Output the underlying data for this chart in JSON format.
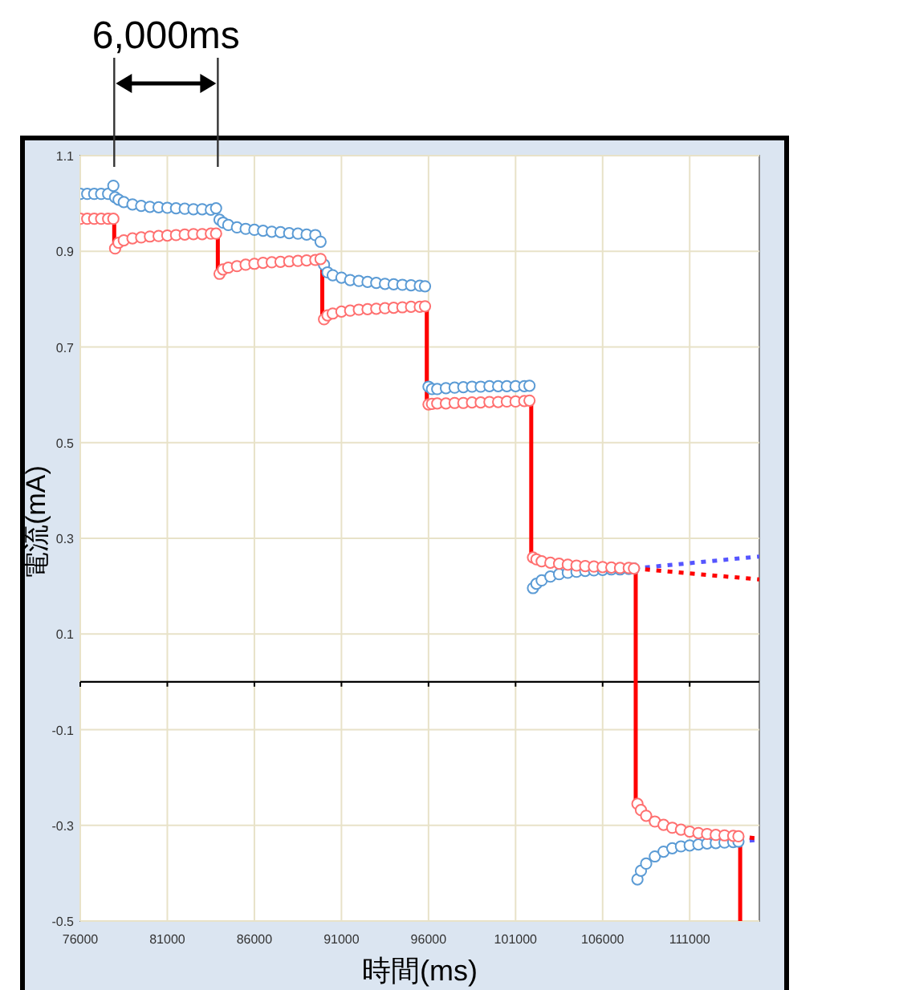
{
  "chart_data": {
    "type": "scatter",
    "xlabel": "時間(ms)",
    "ylabel": "電流(mA)",
    "annotations": [
      "6,000ms"
    ],
    "xlim": [
      76000,
      115000
    ],
    "xticks": [
      76000,
      81000,
      86000,
      91000,
      96000,
      101000,
      106000,
      111000
    ],
    "ylim": [
      -0.5,
      1.1
    ],
    "yticks": [
      1.1,
      0.9,
      0.7,
      0.5,
      0.3,
      0.1,
      -0.1,
      -0.3,
      -0.5
    ],
    "grid": true,
    "series": [
      {
        "color": "#5b9bd5",
        "marker": "circle",
        "x": [
          76000,
          76400,
          76800,
          77200,
          77600,
          77900,
          78000,
          78200,
          78500,
          79000,
          79500,
          80000,
          80500,
          81000,
          81500,
          82000,
          82500,
          83000,
          83500,
          83800,
          84000,
          84200,
          84500,
          85000,
          85500,
          86000,
          86500,
          87000,
          87500,
          88000,
          88500,
          89000,
          89500,
          89800,
          90000,
          90200,
          90500,
          91000,
          91500,
          92000,
          92500,
          93000,
          93500,
          94000,
          94500,
          95000,
          95500,
          95800,
          96000,
          96200,
          96500,
          97000,
          97500,
          98000,
          98500,
          99000,
          99500,
          100000,
          100500,
          101000,
          101500,
          101800,
          102000,
          102200,
          102500,
          103000,
          103500,
          104000,
          104500,
          105000,
          105500,
          106000,
          106500,
          107000,
          107500,
          107800,
          108000,
          108200,
          108500,
          109000,
          109500,
          110000,
          110500,
          111000,
          111500,
          112000,
          112500,
          113000,
          113500,
          113800
        ],
        "values": [
          1.02,
          1.02,
          1.02,
          1.02,
          1.02,
          1.037,
          1.013,
          1.008,
          1.003,
          0.998,
          0.995,
          0.993,
          0.992,
          0.991,
          0.99,
          0.989,
          0.988,
          0.988,
          0.987,
          0.99,
          0.966,
          0.96,
          0.955,
          0.95,
          0.947,
          0.945,
          0.943,
          0.941,
          0.94,
          0.938,
          0.937,
          0.935,
          0.934,
          0.92,
          0.872,
          0.856,
          0.85,
          0.845,
          0.84,
          0.838,
          0.836,
          0.834,
          0.832,
          0.831,
          0.83,
          0.829,
          0.828,
          0.827,
          0.617,
          0.612,
          0.612,
          0.614,
          0.615,
          0.616,
          0.617,
          0.617,
          0.618,
          0.618,
          0.618,
          0.618,
          0.618,
          0.619,
          0.196,
          0.205,
          0.212,
          0.22,
          0.225,
          0.228,
          0.23,
          0.232,
          0.233,
          0.234,
          0.235,
          0.235,
          0.236,
          0.237,
          -0.413,
          -0.395,
          -0.38,
          -0.365,
          -0.355,
          -0.348,
          -0.344,
          -0.342,
          -0.34,
          -0.338,
          -0.337,
          -0.336,
          -0.335,
          -0.334
        ]
      },
      {
        "color": "#ff7070",
        "marker": "circle",
        "x": [
          76000,
          76400,
          76800,
          77200,
          77600,
          77900,
          78000,
          78200,
          78500,
          79000,
          79500,
          80000,
          80500,
          81000,
          81500,
          82000,
          82500,
          83000,
          83500,
          83800,
          84000,
          84200,
          84500,
          85000,
          85500,
          86000,
          86500,
          87000,
          87500,
          88000,
          88500,
          89000,
          89500,
          89800,
          90000,
          90200,
          90500,
          91000,
          91500,
          92000,
          92500,
          93000,
          93500,
          94000,
          94500,
          95000,
          95500,
          95800,
          96000,
          96200,
          96500,
          97000,
          97500,
          98000,
          98500,
          99000,
          99500,
          100000,
          100500,
          101000,
          101500,
          101800,
          102000,
          102200,
          102500,
          103000,
          103500,
          104000,
          104500,
          105000,
          105500,
          106000,
          106500,
          107000,
          107500,
          107800,
          108000,
          108200,
          108500,
          109000,
          109500,
          110000,
          110500,
          111000,
          111500,
          112000,
          112500,
          113000,
          113500,
          113800
        ],
        "values": [
          0.968,
          0.968,
          0.968,
          0.968,
          0.968,
          0.968,
          0.906,
          0.918,
          0.923,
          0.927,
          0.929,
          0.931,
          0.932,
          0.933,
          0.934,
          0.935,
          0.936,
          0.936,
          0.937,
          0.937,
          0.853,
          0.862,
          0.866,
          0.869,
          0.872,
          0.874,
          0.876,
          0.877,
          0.878,
          0.879,
          0.88,
          0.881,
          0.882,
          0.884,
          0.758,
          0.766,
          0.77,
          0.774,
          0.776,
          0.778,
          0.779,
          0.78,
          0.781,
          0.782,
          0.783,
          0.784,
          0.784,
          0.785,
          0.58,
          0.581,
          0.582,
          0.582,
          0.583,
          0.583,
          0.584,
          0.584,
          0.585,
          0.585,
          0.586,
          0.586,
          0.587,
          0.588,
          0.26,
          0.256,
          0.252,
          0.249,
          0.247,
          0.245,
          0.243,
          0.242,
          0.241,
          0.24,
          0.239,
          0.238,
          0.238,
          0.237,
          -0.255,
          -0.268,
          -0.28,
          -0.292,
          -0.299,
          -0.305,
          -0.309,
          -0.313,
          -0.316,
          -0.318,
          -0.32,
          -0.321,
          -0.322,
          -0.323
        ]
      },
      {
        "type": "line",
        "color": "#ff0000",
        "marker": "none",
        "line_style": "solid",
        "x": [
          77950,
          77950
        ],
        "values": [
          0.968,
          0.906
        ]
      },
      {
        "type": "line",
        "color": "#ff0000",
        "marker": "none",
        "line_style": "solid",
        "x": [
          83900,
          83900
        ],
        "values": [
          0.937,
          0.853
        ]
      },
      {
        "type": "line",
        "color": "#ff0000",
        "marker": "none",
        "line_style": "solid",
        "x": [
          89900,
          89900
        ],
        "values": [
          0.884,
          0.758
        ]
      },
      {
        "type": "line",
        "color": "#ff0000",
        "marker": "none",
        "line_style": "solid",
        "x": [
          95900,
          95900
        ],
        "values": [
          0.785,
          0.58
        ]
      },
      {
        "type": "line",
        "color": "#ff0000",
        "marker": "none",
        "line_style": "solid",
        "x": [
          101900,
          101900
        ],
        "values": [
          0.588,
          0.26
        ]
      },
      {
        "type": "line",
        "color": "#ff0000",
        "marker": "none",
        "line_style": "solid",
        "x": [
          107900,
          107900
        ],
        "values": [
          0.237,
          -0.255
        ]
      },
      {
        "type": "line",
        "color": "#ff0000",
        "marker": "none",
        "line_style": "solid",
        "x": [
          113900,
          113900
        ],
        "values": [
          -0.323,
          -0.5
        ]
      },
      {
        "type": "line",
        "color": "#5555ff",
        "marker": "none",
        "line_style": "dotted",
        "x": [
          107800,
          115000
        ],
        "values": [
          0.237,
          0.262
        ]
      },
      {
        "type": "line",
        "color": "#ff0000",
        "marker": "none",
        "line_style": "dotted",
        "x": [
          107800,
          115000
        ],
        "values": [
          0.237,
          0.214
        ]
      },
      {
        "type": "line",
        "color": "#5555ff",
        "marker": "none",
        "line_style": "dotted",
        "x": [
          113800,
          115000
        ],
        "values": [
          -0.334,
          -0.33
        ]
      },
      {
        "type": "line",
        "color": "#ff0000",
        "marker": "none",
        "line_style": "dotted",
        "x": [
          113800,
          115000
        ],
        "values": [
          -0.323,
          -0.328
        ]
      }
    ]
  }
}
